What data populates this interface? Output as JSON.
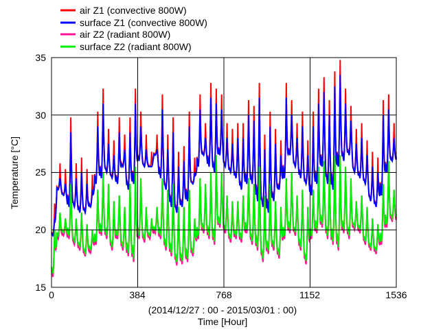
{
  "chart_data": {
    "type": "line",
    "title": "",
    "xlabel": "Time  [Hour]",
    "xsublabel": "(2014/12/27 : 00 - 2015/03/01 : 00)",
    "ylabel": "Temperature [°C]",
    "xlim": [
      0,
      1536
    ],
    "ylim": [
      15,
      35
    ],
    "xticks": [
      "0",
      "384",
      "768",
      "1152",
      "1536"
    ],
    "yticks": [
      "15",
      "20",
      "25",
      "30",
      "35"
    ],
    "grid": true,
    "legend_placement": "top-left, above plot",
    "note": "Hourly series summarized as daily minimum/maximum (64 days)",
    "series": [
      {
        "name": "air Z1 (convective 800W)",
        "color": "#ff0000",
        "derived_from": "surface Z1 (convective 800W)",
        "peak_offset": 1.2
      },
      {
        "name": "surface Z1 (convective 800W)",
        "color": "#0000ff",
        "daily_max": [
          21,
          24.5,
          24,
          28.5,
          24.5,
          25,
          24,
          23.5,
          29,
          31,
          27.5,
          26.5,
          28.5,
          27,
          28.5,
          31,
          29,
          27,
          25.5,
          27,
          30.5,
          27,
          28.5,
          25.5,
          26,
          29,
          25,
          30.5,
          28,
          31.5,
          31,
          30.5,
          28,
          27.5,
          28,
          28,
          30,
          29.5,
          31.5,
          27,
          29,
          27.5,
          26.5,
          31.5,
          30,
          28,
          29,
          26.5,
          29,
          31,
          32,
          30,
          32.5,
          33.5,
          31,
          29.5,
          27.5,
          28,
          26.5,
          25.5,
          25,
          30,
          30.5,
          28
        ],
        "daily_min": [
          19.5,
          23.5,
          23,
          22,
          22,
          21.5,
          21.5,
          22,
          24,
          24.5,
          25,
          24.5,
          24,
          25.5,
          23.5,
          24,
          26,
          25.5,
          25.5,
          26.5,
          24.5,
          23.5,
          22,
          21.5,
          22,
          22.5,
          24,
          25.5,
          26.5,
          25.5,
          25,
          26.5,
          25.5,
          25,
          24.5,
          23.5,
          24,
          24,
          22.5,
          22,
          21.5,
          22.5,
          23.5,
          24.5,
          26.5,
          25.5,
          24.5,
          24,
          23,
          24,
          25.5,
          24,
          23.5,
          25.5,
          26,
          26.5,
          25,
          24.5,
          24,
          22.5,
          22,
          23,
          25,
          26
        ]
      },
      {
        "name": "air Z2 (radiant 800W)",
        "color": "#ff1493",
        "derived_from": "surface Z2 (radiant 800W)",
        "trough_offset": -0.3
      },
      {
        "name": "surface Z2 (radiant 800W)",
        "color": "#00ee00",
        "daily_max": [
          20,
          21.5,
          21,
          24,
          21,
          21.5,
          20.5,
          20,
          23.5,
          25,
          24,
          22.5,
          23,
          22,
          24,
          25.5,
          24.5,
          22,
          21,
          22,
          24.5,
          23.5,
          24,
          22,
          22,
          23.5,
          21,
          24.5,
          24,
          25,
          26.5,
          25,
          23,
          22.5,
          22.5,
          23,
          24.5,
          24,
          25.5,
          23,
          24,
          22.5,
          22,
          24.5,
          25,
          23,
          23.5,
          22,
          23.5,
          25.5,
          26,
          25,
          26.5,
          26.5,
          25.5,
          24.5,
          22.5,
          23,
          22,
          21,
          20.5,
          24,
          26,
          23.5
        ],
        "daily_min": [
          16.2,
          19.5,
          19.8,
          19.5,
          19,
          18.5,
          18,
          18.3,
          19,
          19.8,
          19.5,
          18.5,
          19.5,
          18.5,
          18,
          17.5,
          19.5,
          19.2,
          19.5,
          20,
          19.5,
          18.5,
          18,
          17.2,
          17.3,
          17.5,
          18,
          19.5,
          20,
          19.5,
          19,
          20.5,
          20,
          19.2,
          19.5,
          19.2,
          20,
          19,
          18.5,
          17.5,
          18.2,
          18.5,
          17.8,
          19.5,
          20,
          19.8,
          18.5,
          17.3,
          19.5,
          20,
          20.5,
          19.5,
          19,
          18.5,
          20,
          19.5,
          20.3,
          20,
          19,
          18.5,
          18.2,
          19,
          20.5,
          21
        ]
      }
    ]
  }
}
